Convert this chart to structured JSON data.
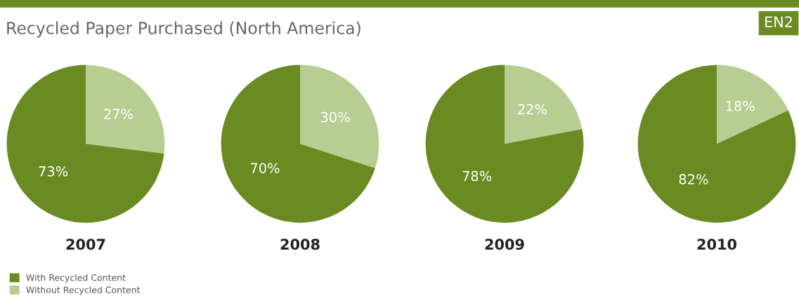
{
  "chart_data": [
    {
      "type": "pie",
      "title": "Recycled Paper Purchased (North America)",
      "annotations": [
        "EN2"
      ],
      "xlabel": "2007",
      "categories": [
        "With Recycled Content",
        "Without Recycled Content"
      ],
      "values": [
        73,
        27
      ],
      "value_labels": [
        "73%",
        "27%"
      ],
      "colors": [
        "#6a8a22",
        "#b7cd92"
      ],
      "legend": "bottom left"
    },
    {
      "type": "pie",
      "xlabel": "2008",
      "categories": [
        null,
        null
      ],
      "values": [
        70,
        30
      ],
      "value_labels": [
        "70%",
        "30%"
      ],
      "colors": [
        "#6a8a22",
        "#b7cd92"
      ]
    },
    {
      "type": "pie",
      "xlabel": "2009",
      "categories": [
        null,
        null
      ],
      "values": [
        78,
        22
      ],
      "value_labels": [
        "78%",
        "22%"
      ],
      "colors": [
        "#6a8a22",
        "#b7cd92"
      ]
    },
    {
      "type": "pie",
      "xlabel": "2010",
      "categories": [
        null,
        null
      ],
      "values": [
        82,
        18
      ],
      "value_labels": [
        "82%",
        "18%"
      ],
      "colors": [
        "#6a8a22",
        "#b7cd92"
      ]
    }
  ]
}
